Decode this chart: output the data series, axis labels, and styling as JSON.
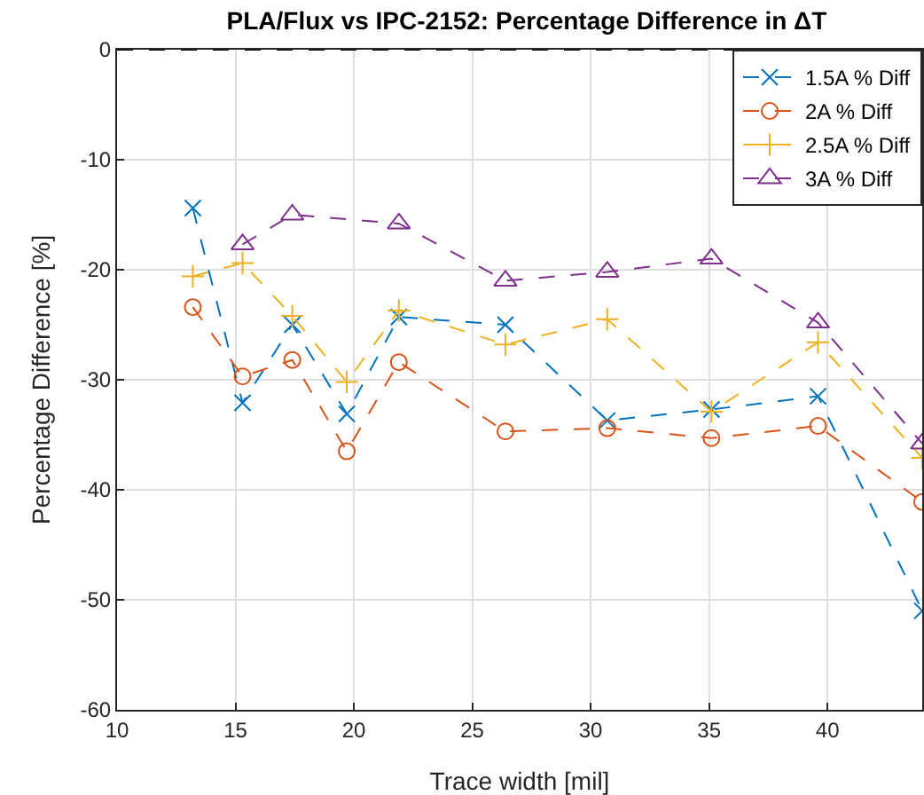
{
  "chart_data": {
    "type": "line",
    "title": "PLA/Flux vs IPC-2152: Percentage Difference in ΔT",
    "xlabel": "Trace width [mil]",
    "ylabel": "Percentage Difference [%]",
    "x": [
      13.2,
      15.3,
      17.4,
      19.7,
      21.9,
      26.4,
      30.7,
      35.1,
      39.6,
      44
    ],
    "xlim": [
      10,
      44
    ],
    "xticks": [
      10,
      15,
      20,
      25,
      30,
      35,
      40
    ],
    "ylim": [
      -60,
      0
    ],
    "yticks": [
      -60,
      -50,
      -40,
      -30,
      -20,
      -10,
      0
    ],
    "grid": true,
    "legend": "top right",
    "line_style": "dashed",
    "series": [
      {
        "name": "1.5A % Diff",
        "color": "#0072bd",
        "marker": "cross",
        "values": [
          -14.4,
          -32.1,
          -25.0,
          -33.1,
          -24.3,
          -25.0,
          -33.7,
          -32.7,
          -31.5,
          -51
        ]
      },
      {
        "name": "2A % Diff",
        "color": "#d95319",
        "marker": "circle",
        "values": [
          -23.4,
          -29.7,
          -28.2,
          -36.5,
          -28.4,
          -34.7,
          -34.4,
          -35.3,
          -34.2,
          -41.1
        ]
      },
      {
        "name": "2.5A % Diff",
        "color": "#edb120",
        "marker": "plus",
        "values": [
          -20.6,
          -19.4,
          -24.2,
          -30.2,
          -23.7,
          -26.8,
          -24.5,
          -32.9,
          -26.6,
          -37.1
        ]
      },
      {
        "name": "3A % Diff",
        "color": "#7e2f8e",
        "marker": "triangle",
        "values": [
          null,
          -17.7,
          -15.0,
          null,
          -15.8,
          -21.0,
          -20.2,
          -19.0,
          -24.8,
          -35.8
        ]
      }
    ],
    "ref_lines": [
      {
        "axis": "y",
        "value": 0,
        "color": "#000000",
        "line_style": "dashed"
      }
    ]
  }
}
